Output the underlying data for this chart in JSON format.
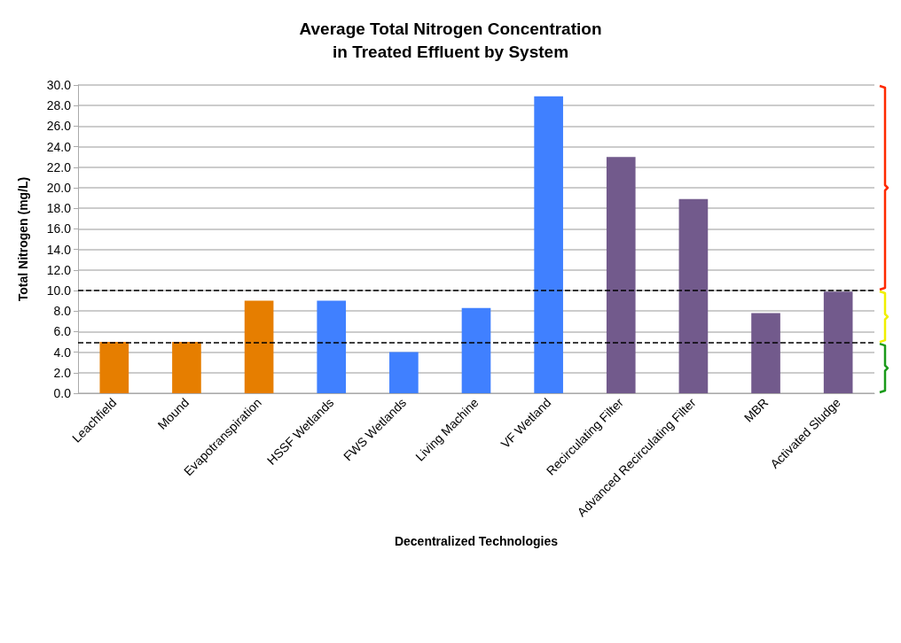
{
  "chart_data": {
    "type": "bar",
    "title": "Average Total Nitrogen Concentration\nin Treated Effluent by System",
    "xlabel": "Decentralized Technologies",
    "ylabel": "Total Nitrogen (mg/L)",
    "categories": [
      "Leachfield",
      "Mound",
      "Evapotranspiration",
      "HSSF Wetlands",
      "FWS Wetlands",
      "Living Machine",
      "VF Wetland",
      "Recirculating Filter",
      "Advanced Recirculating Filter",
      "MBR",
      "Activated Sludge"
    ],
    "values": [
      5.0,
      5.0,
      9.0,
      9.0,
      4.0,
      8.3,
      28.9,
      23.0,
      18.9,
      7.8,
      9.9
    ],
    "colors": [
      "#e67e00",
      "#e67e00",
      "#e67e00",
      "#4080ff",
      "#4080ff",
      "#4080ff",
      "#4080ff",
      "#725a8c",
      "#725a8c",
      "#725a8c",
      "#725a8c"
    ],
    "ylim": [
      0,
      30
    ],
    "yticks": [
      {
        "value": 0,
        "label": "0.0"
      },
      {
        "value": 2,
        "label": "2.0"
      },
      {
        "value": 4,
        "label": "4.0"
      },
      {
        "value": 6,
        "label": "6.0"
      },
      {
        "value": 8,
        "label": "8.0"
      },
      {
        "value": 10,
        "label": "10.0"
      },
      {
        "value": 12,
        "label": "12.0"
      },
      {
        "value": 14,
        "label": "14.0"
      },
      {
        "value": 16,
        "label": "16.0"
      },
      {
        "value": 18,
        "label": "18.0"
      },
      {
        "value": 20,
        "label": "20.0"
      },
      {
        "value": 22,
        "label": "22.0"
      },
      {
        "value": 24,
        "label": "24.0"
      },
      {
        "value": 26,
        "label": "26.0"
      },
      {
        "value": 28,
        "label": "28.0"
      },
      {
        "value": 30,
        "label": "30.0"
      }
    ],
    "grid": "y",
    "ref_lines": [
      {
        "axis": "y",
        "value": 10,
        "line_style": "dashed",
        "color": "#000000"
      },
      {
        "axis": "y",
        "value": 4.9,
        "line_style": "dashed",
        "color": "#000000"
      }
    ]
  }
}
